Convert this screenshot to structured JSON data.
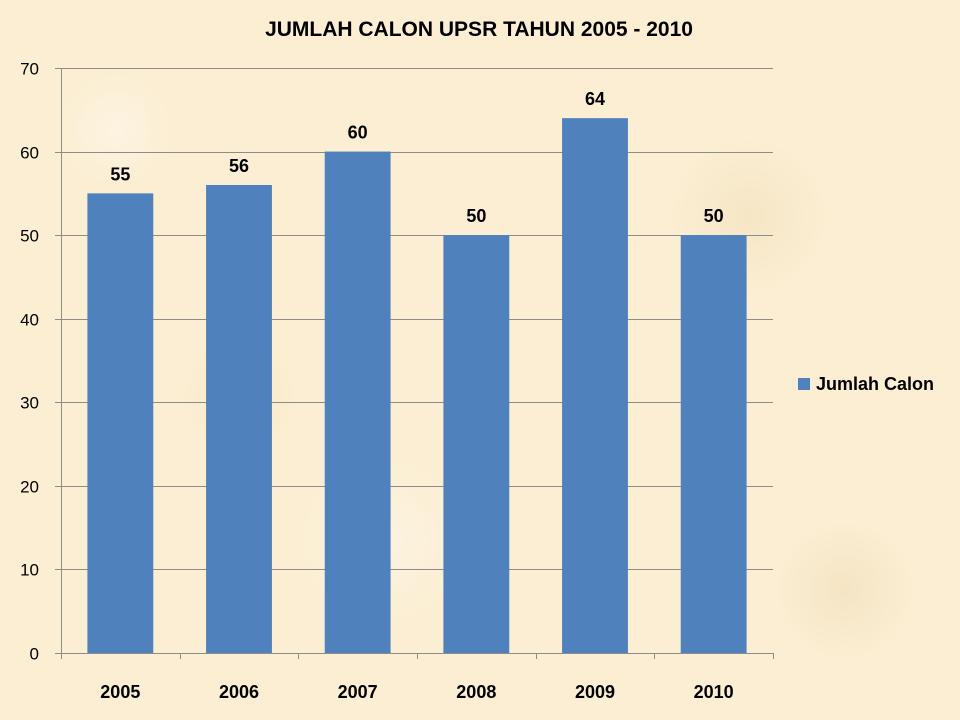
{
  "chart_data": {
    "type": "bar",
    "title": "JUMLAH CALON UPSR TAHUN 2005 - 2010",
    "categories": [
      "2005",
      "2006",
      "2007",
      "2008",
      "2009",
      "2010"
    ],
    "series": [
      {
        "name": "Jumlah Calon",
        "values": [
          55,
          56,
          60,
          50,
          64,
          50
        ],
        "color": "#4f81bd"
      }
    ],
    "xlabel": "",
    "ylabel": "",
    "ylim": [
      0,
      70
    ],
    "yticks": [
      0,
      10,
      20,
      30,
      40,
      50,
      60,
      70
    ],
    "grid": true,
    "data_labels": true,
    "legend_position": "right"
  }
}
